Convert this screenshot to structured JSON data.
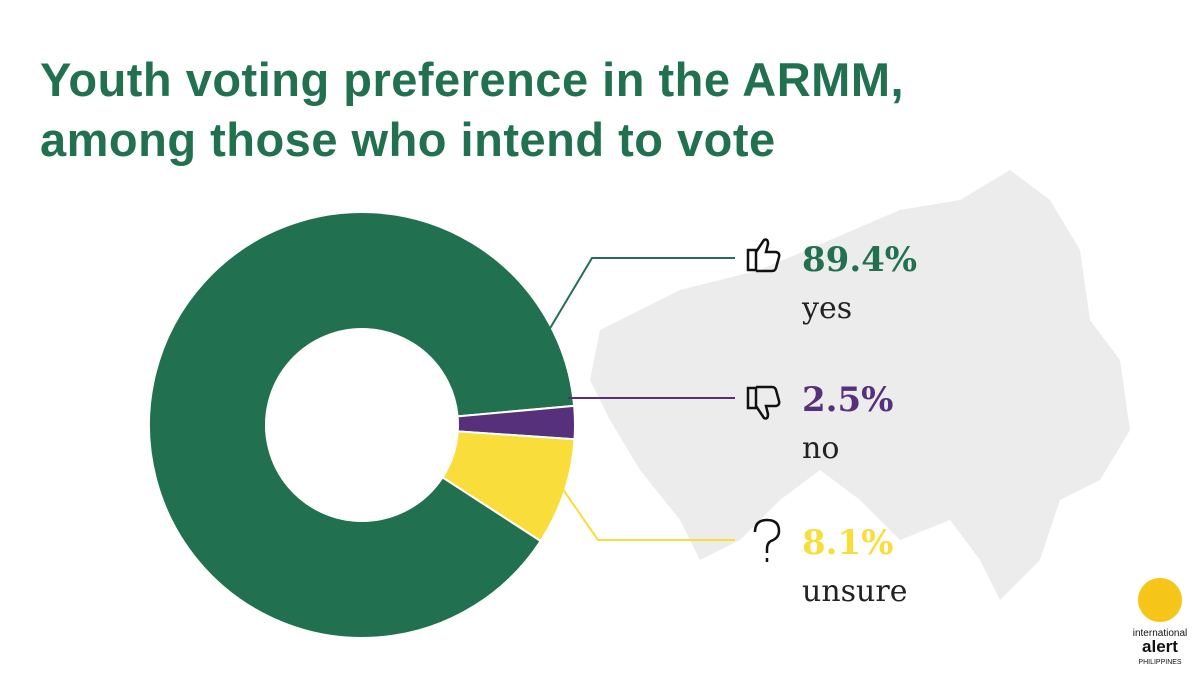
{
  "chart_data": {
    "type": "donut",
    "title": "Youth voting preference in the ARMM, among those who intend to vote",
    "categories": [
      "yes",
      "no",
      "unsure"
    ],
    "values": [
      89.4,
      2.5,
      8.1
    ],
    "value_labels": [
      "89.4%",
      "2.5%",
      "8.1%"
    ],
    "colors": [
      "#217150",
      "#56307a",
      "#f9de3b"
    ]
  },
  "logo": {
    "lines": [
      "international",
      "alert",
      "PHILIPPINES"
    ]
  }
}
